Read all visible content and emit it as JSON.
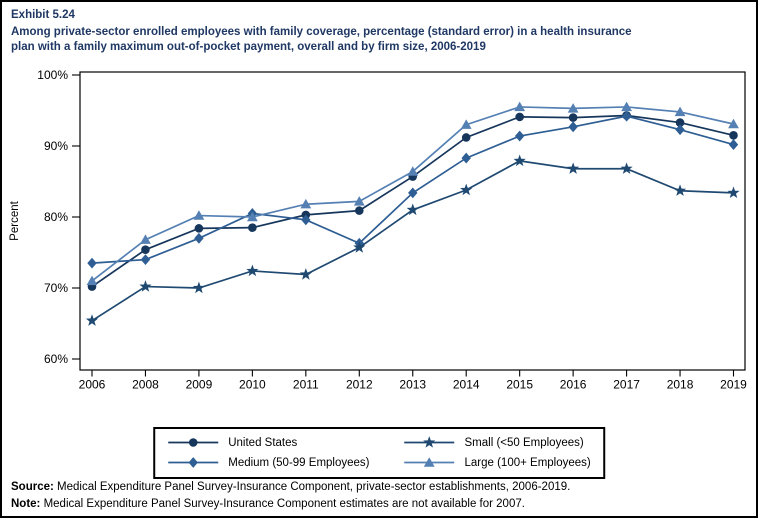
{
  "exhibit": {
    "label": "Exhibit 5.24",
    "title_lines": [
      "Among private-sector enrolled employees with family coverage, percentage (standard error) in a health insurance",
      "plan with a family maximum out-of-pocket payment, overall and by firm size, 2006-2019"
    ],
    "title_color": "#1F3864"
  },
  "chart_data": {
    "type": "line",
    "title": "Percentage in a health insurance plan with a family maximum out-of-pocket payment, overall and by firm size, 2006-2019",
    "xlabel": "",
    "ylabel": "Percent",
    "ylim": [
      60,
      100
    ],
    "grid": false,
    "legend_position": "bottom",
    "yticks": [
      {
        "label": "100%",
        "value": 100
      },
      {
        "label": "90%",
        "value": 90
      },
      {
        "label": "80%",
        "value": 80
      },
      {
        "label": "70%",
        "value": 70
      },
      {
        "label": "60%",
        "value": 60
      }
    ],
    "categories": [
      "2006",
      "2008",
      "2009",
      "2010",
      "2011",
      "2012",
      "2013",
      "2014",
      "2015",
      "2016",
      "2017",
      "2018",
      "2019"
    ],
    "series": [
      {
        "name": "United States",
        "marker": "circle",
        "color": "#16365C",
        "values": [
          70.2,
          75.4,
          78.4,
          78.5,
          80.3,
          80.9,
          85.7,
          91.2,
          94.1,
          94.0,
          94.3,
          93.3,
          91.5
        ]
      },
      {
        "name": "Medium (50-99 Employees)",
        "marker": "diamond",
        "color": "#2E5E93",
        "values": [
          73.5,
          74.0,
          77.0,
          80.5,
          79.6,
          76.3,
          83.4,
          88.3,
          91.4,
          92.7,
          94.2,
          92.3,
          90.2
        ]
      },
      {
        "name": "Small (<50 Employees)",
        "marker": "star",
        "color": "#1F4971",
        "values": [
          65.4,
          70.2,
          70.0,
          72.4,
          71.9,
          75.7,
          81.0,
          83.8,
          87.9,
          86.8,
          86.8,
          83.7,
          83.4
        ]
      },
      {
        "name": "Large (100+ Employees)",
        "marker": "triangle",
        "color": "#5580B3",
        "values": [
          71.0,
          76.8,
          80.2,
          80.0,
          81.8,
          82.2,
          86.4,
          93.0,
          95.5,
          95.3,
          95.5,
          94.8,
          93.1
        ]
      }
    ]
  },
  "legend": {
    "entries": [
      "United States",
      "Small (<50 Employees)",
      "Medium (50-99 Employees)",
      "Large (100+ Employees)"
    ]
  },
  "footer": {
    "source_label": "Source:",
    "source_text": " Medical Expenditure Panel Survey-Insurance Component, private-sector establishments, 2006-2019.",
    "note_label": "Note:",
    "note_text": " Medical Expenditure Panel Survey-Insurance Component estimates are not available for 2007."
  }
}
